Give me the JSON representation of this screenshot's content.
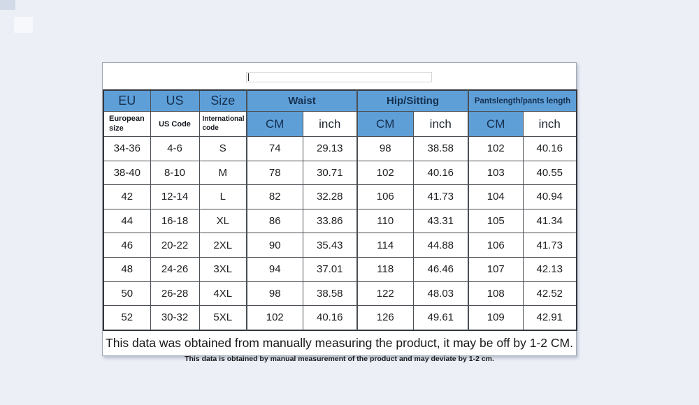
{
  "colors": {
    "page_bg": "#ECEFF6",
    "header_blue": "#5E9FD8",
    "header_text_navy": "#15304F"
  },
  "input": {
    "value": "",
    "placeholder": ""
  },
  "table": {
    "top_headers": [
      {
        "label": "EU",
        "span": 1
      },
      {
        "label": "US",
        "span": 1
      },
      {
        "label": "Size",
        "span": 1
      },
      {
        "label": "Waist",
        "span": 2
      },
      {
        "label": "Hip/Sitting",
        "span": 2
      },
      {
        "label": "Pantslength/pants length",
        "span": 2
      }
    ],
    "sub_headers": [
      "European size",
      "US Code",
      "International code",
      "CM",
      "inch",
      "CM",
      "inch",
      "CM",
      "inch"
    ],
    "rows": [
      [
        "34-36",
        "4-6",
        "S",
        "74",
        "29.13",
        "98",
        "38.58",
        "102",
        "40.16"
      ],
      [
        "38-40",
        "8-10",
        "M",
        "78",
        "30.71",
        "102",
        "40.16",
        "103",
        "40.55"
      ],
      [
        "42",
        "12-14",
        "L",
        "82",
        "32.28",
        "106",
        "41.73",
        "104",
        "40.94"
      ],
      [
        "44",
        "16-18",
        "XL",
        "86",
        "33.86",
        "110",
        "43.31",
        "105",
        "41.34"
      ],
      [
        "46",
        "20-22",
        "2XL",
        "90",
        "35.43",
        "114",
        "44.88",
        "106",
        "41.73"
      ],
      [
        "48",
        "24-26",
        "3XL",
        "94",
        "37.01",
        "118",
        "46.46",
        "107",
        "42.13"
      ],
      [
        "50",
        "26-28",
        "4XL",
        "98",
        "38.58",
        "122",
        "48.03",
        "108",
        "42.52"
      ],
      [
        "52",
        "30-32",
        "5XL",
        "102",
        "40.16",
        "126",
        "49.61",
        "109",
        "42.91"
      ]
    ]
  },
  "footer": {
    "primary": "This data was obtained from manually measuring the product, it may be off by 1-2 CM.",
    "secondary": "This data is obtained by manual measurement of the product and may deviate by 1-2 cm."
  }
}
